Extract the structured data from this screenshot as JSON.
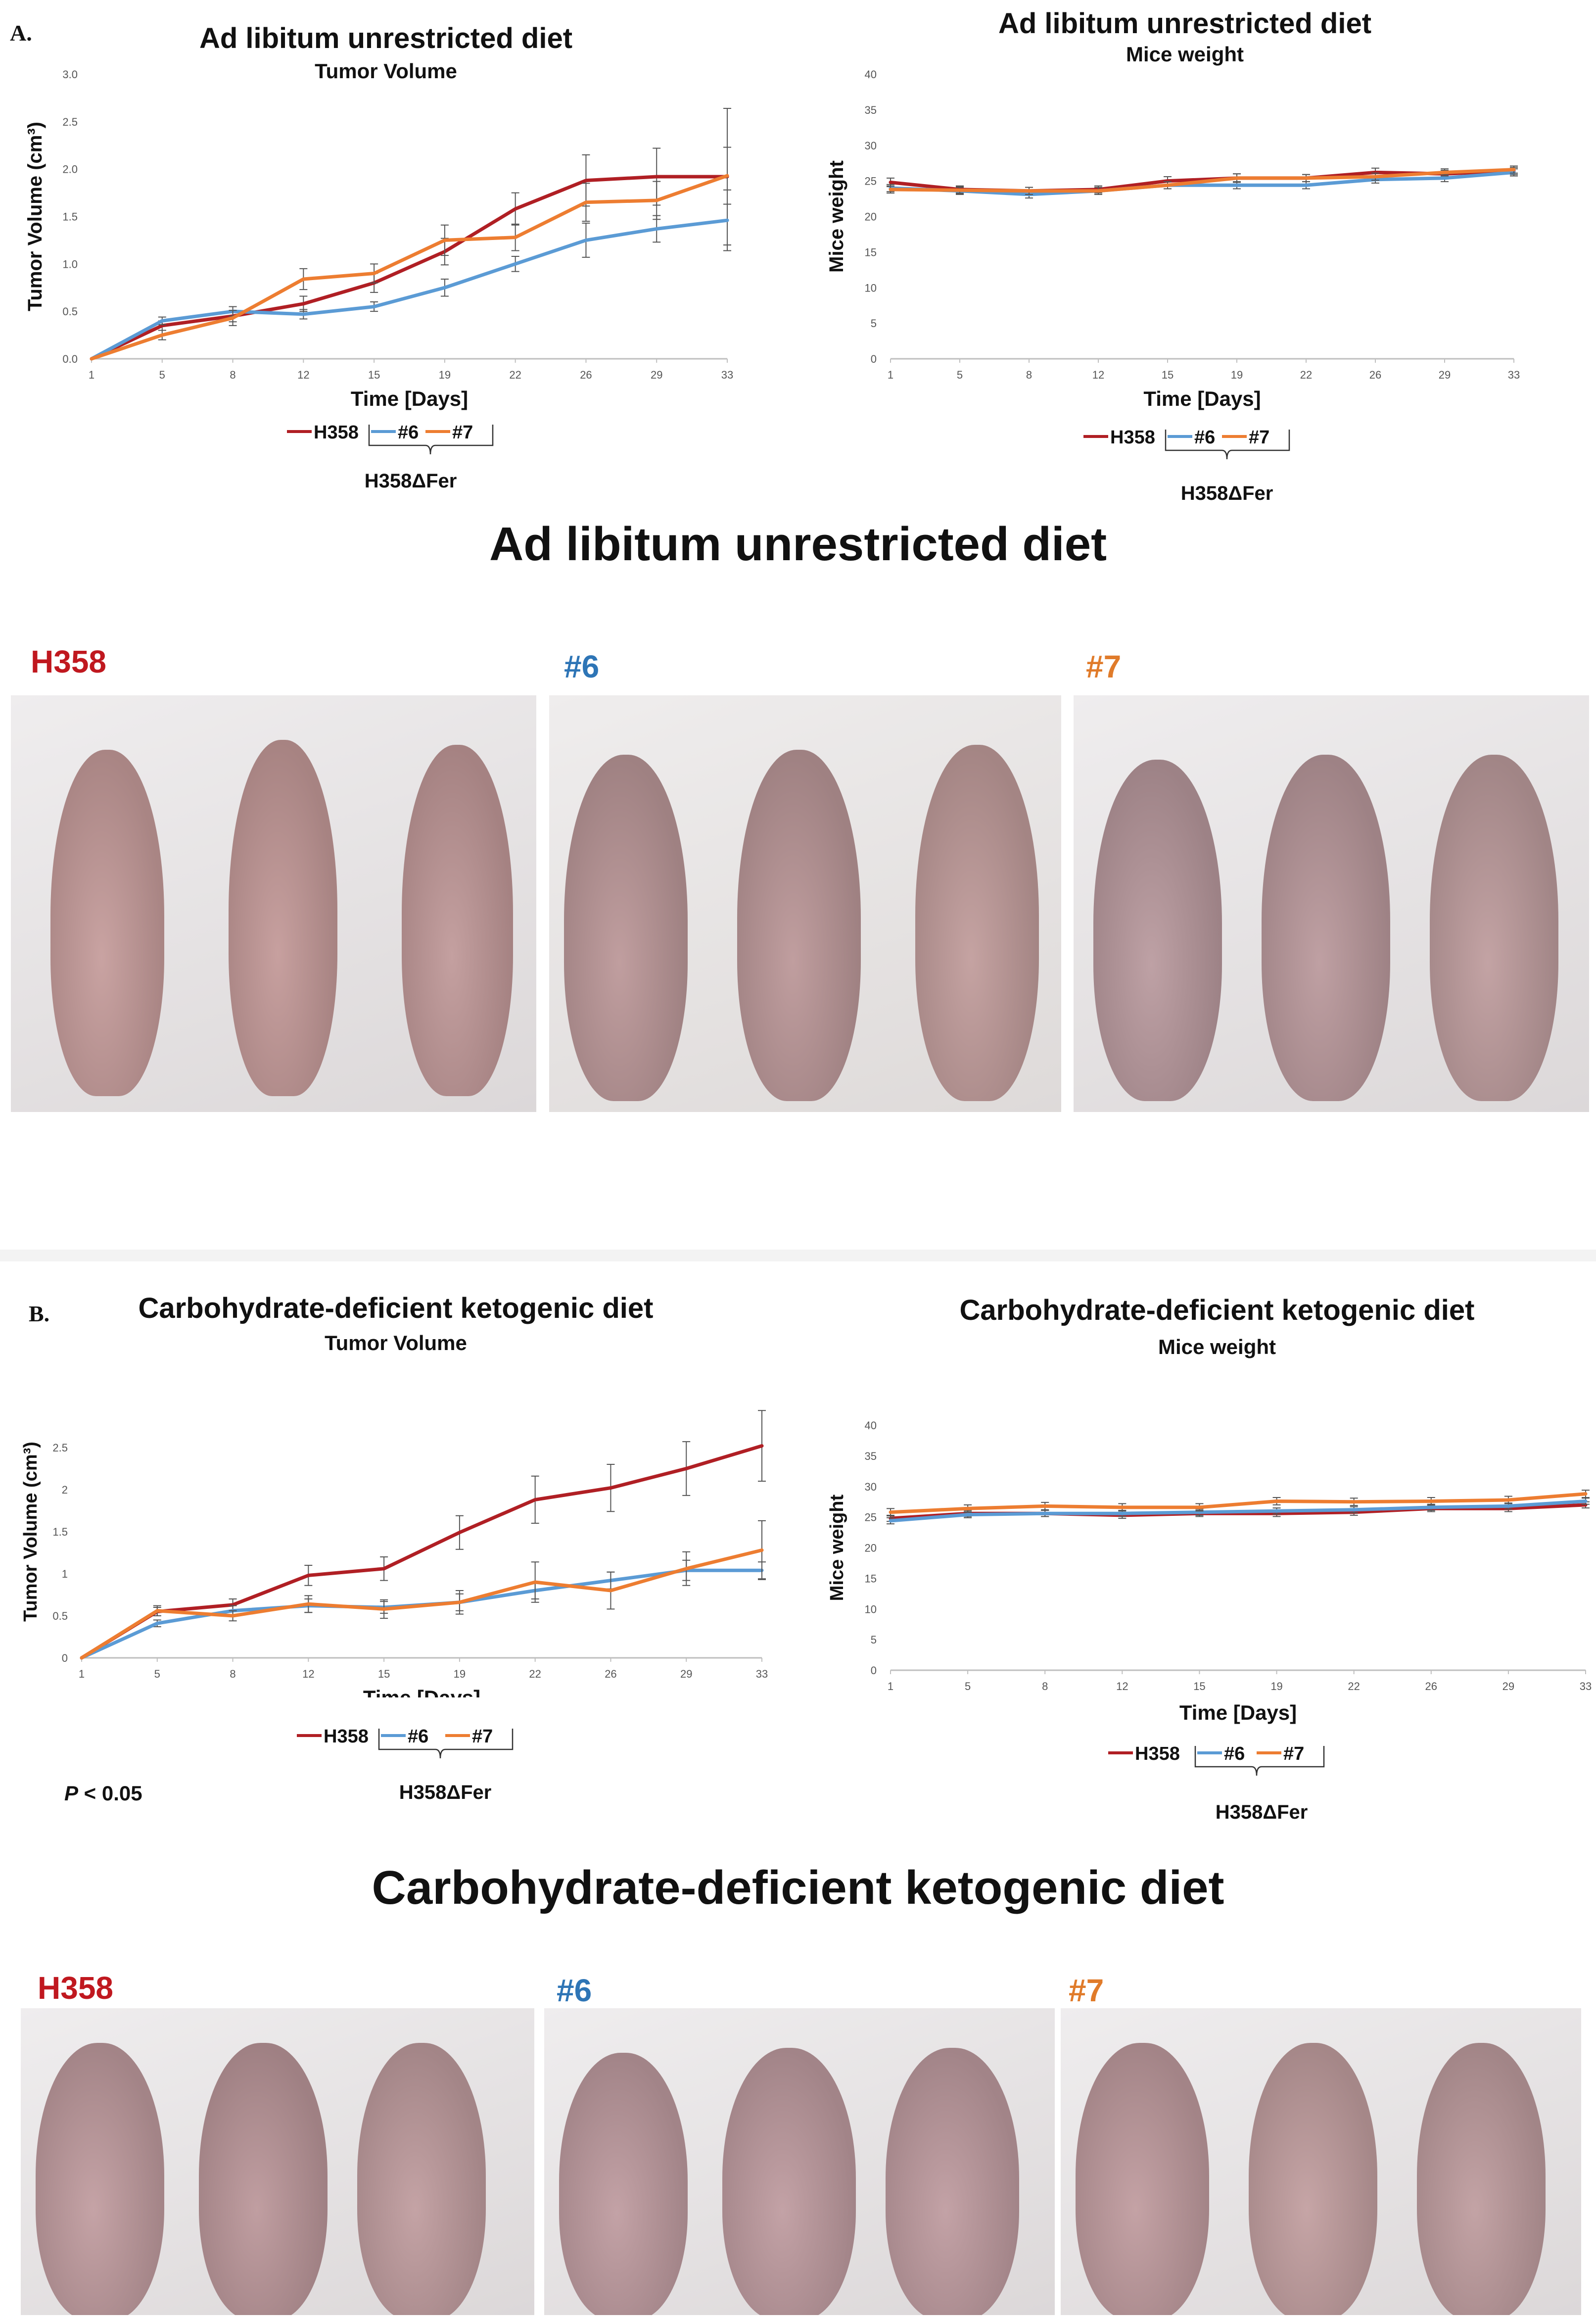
{
  "panels": {
    "a": {
      "label": "A.",
      "section_title": "Ad libitum unrestricted diet",
      "groups": [
        "H358",
        "#6",
        "#7"
      ],
      "tumor": {
        "title": "Ad libitum unrestricted diet",
        "subtitle": "Tumor Volume",
        "ylabel": "Tumor Volume (cm³)",
        "xlabel": "Time [Days]"
      },
      "weight": {
        "title": "Ad libitum unrestricted diet",
        "subtitle": "Mice weight",
        "ylabel": "Mice weight",
        "xlabel": "Time [Days]"
      },
      "legend": {
        "h358": "H358",
        "s6": "#6",
        "s7": "#7",
        "group": "H358ΔFer"
      }
    },
    "b": {
      "label": "B.",
      "section_title": "Carbohydrate-deficient ketogenic diet",
      "groups": [
        "H358",
        "#6",
        "#7"
      ],
      "pvalue_p": "P",
      "pvalue_rest": " < 0.05",
      "tumor": {
        "title": "Carbohydrate-deficient ketogenic diet",
        "subtitle": "Tumor Volume",
        "ylabel": "Tumor Volume (cm³)",
        "xlabel": "Time [Days]"
      },
      "weight": {
        "title": "Carbohydrate-deficient ketogenic diet",
        "subtitle": "Mice weight",
        "ylabel": "Mice weight",
        "xlabel": "Time [Days]"
      },
      "legend": {
        "h358": "H358",
        "s6": "#6",
        "s7": "#7",
        "group": "H358ΔFer"
      }
    }
  },
  "colors": {
    "h358": "#b01f24",
    "s6": "#5b9bd5",
    "s7": "#ed7d31",
    "group_h358": "#c0181f",
    "group_s6": "#2e75b6",
    "group_s7": "#e07b2a"
  },
  "chart_data": [
    {
      "id": "a-tumor",
      "type": "line",
      "title": "Ad libitum unrestricted diet",
      "subtitle": "Tumor Volume",
      "xlabel": "Time [Days]",
      "ylabel": "Tumor Volume (cm³)",
      "categories": [
        "1",
        "5",
        "8",
        "12",
        "15",
        "19",
        "22",
        "26",
        "29",
        "33"
      ],
      "ylim": [
        0,
        3.0
      ],
      "yticks": [
        0.0,
        0.5,
        1.0,
        1.5,
        2.0,
        2.5,
        3.0
      ],
      "ytick_labels": [
        "0.0",
        "0.5",
        "1.0",
        "1.5",
        "2.0",
        "2.5",
        "3.0"
      ],
      "series": [
        {
          "name": "H358",
          "color": "#b01f24",
          "values": [
            0,
            0.35,
            0.45,
            0.58,
            0.8,
            1.13,
            1.58,
            1.88,
            1.92,
            1.92
          ],
          "errors": [
            0,
            0.05,
            0.06,
            0.08,
            0.1,
            0.14,
            0.17,
            0.27,
            0.3,
            0.72
          ]
        },
        {
          "name": "#6",
          "color": "#5b9bd5",
          "values": [
            0,
            0.4,
            0.5,
            0.47,
            0.55,
            0.75,
            1.0,
            1.25,
            1.37,
            1.46
          ],
          "errors": [
            0,
            0.04,
            0.05,
            0.05,
            0.05,
            0.09,
            0.08,
            0.18,
            0.14,
            0.32
          ]
        },
        {
          "name": "#7",
          "color": "#ed7d31",
          "values": [
            0,
            0.25,
            0.43,
            0.84,
            0.9,
            1.25,
            1.28,
            1.65,
            1.67,
            1.93
          ],
          "errors": [
            0,
            0.05,
            0.08,
            0.11,
            0.1,
            0.16,
            0.14,
            0.2,
            0.2,
            0.3
          ]
        }
      ]
    },
    {
      "id": "a-weight",
      "type": "line",
      "title": "Ad libitum unrestricted diet",
      "subtitle": "Mice weight",
      "xlabel": "Time [Days]",
      "ylabel": "Mice weight",
      "categories": [
        "1",
        "5",
        "8",
        "12",
        "15",
        "19",
        "22",
        "26",
        "29",
        "33"
      ],
      "ylim": [
        0,
        40
      ],
      "yticks": [
        0,
        5,
        10,
        15,
        20,
        25,
        30,
        35,
        40
      ],
      "ytick_labels": [
        "0",
        "5",
        "10",
        "15",
        "20",
        "25",
        "30",
        "35",
        "40"
      ],
      "series": [
        {
          "name": "H358",
          "color": "#b01f24",
          "values": [
            24.8,
            23.8,
            23.6,
            23.8,
            25.0,
            25.4,
            25.4,
            26.2,
            26.0,
            26.4
          ],
          "errors": [
            0.6,
            0.5,
            0.5,
            0.5,
            0.6,
            0.6,
            0.5,
            0.6,
            0.5,
            0.5
          ]
        },
        {
          "name": "#6",
          "color": "#5b9bd5",
          "values": [
            24.0,
            23.6,
            23.1,
            23.6,
            24.4,
            24.4,
            24.4,
            25.2,
            25.4,
            26.2
          ],
          "errors": [
            0.5,
            0.5,
            0.5,
            0.5,
            0.5,
            0.5,
            0.5,
            0.5,
            0.5,
            0.5
          ]
        },
        {
          "name": "#7",
          "color": "#ed7d31",
          "values": [
            23.8,
            23.7,
            23.6,
            23.6,
            24.4,
            25.4,
            25.4,
            25.6,
            26.2,
            26.6
          ],
          "errors": [
            0.5,
            0.5,
            0.5,
            0.5,
            0.5,
            0.6,
            0.5,
            0.5,
            0.5,
            0.5
          ]
        }
      ]
    },
    {
      "id": "b-tumor",
      "type": "line",
      "title": "Carbohydrate-deficient ketogenic diet",
      "subtitle": "Tumor Volume",
      "xlabel": "Time [Days]",
      "ylabel": "Tumor Volume (cm³)",
      "categories": [
        "1",
        "5",
        "8",
        "12",
        "15",
        "19",
        "22",
        "26",
        "29",
        "33"
      ],
      "ylim": [
        0,
        3.0
      ],
      "yticks": [
        0,
        0.5,
        1,
        1.5,
        2,
        2.5
      ],
      "ytick_labels": [
        "0",
        "0.5",
        "1",
        "1.5",
        "2",
        "2.5"
      ],
      "series": [
        {
          "name": "H358",
          "color": "#b01f24",
          "values": [
            0,
            0.55,
            0.63,
            0.98,
            1.06,
            1.49,
            1.88,
            2.02,
            2.25,
            2.52
          ],
          "errors": [
            0,
            0.05,
            0.07,
            0.12,
            0.14,
            0.2,
            0.28,
            0.28,
            0.32,
            0.42
          ]
        },
        {
          "name": "#6",
          "color": "#5b9bd5",
          "values": [
            0,
            0.41,
            0.56,
            0.62,
            0.6,
            0.66,
            0.8,
            0.92,
            1.04,
            1.04
          ],
          "errors": [
            0,
            0.04,
            0.06,
            0.08,
            0.07,
            0.1,
            0.1,
            0.1,
            0.12,
            0.1
          ]
        },
        {
          "name": "#7",
          "color": "#ed7d31",
          "values": [
            0,
            0.56,
            0.5,
            0.64,
            0.58,
            0.66,
            0.9,
            0.8,
            1.06,
            1.28
          ],
          "errors": [
            0,
            0.06,
            0.06,
            0.1,
            0.11,
            0.14,
            0.24,
            0.22,
            0.2,
            0.35
          ]
        }
      ]
    },
    {
      "id": "b-weight",
      "type": "line",
      "title": "Carbohydrate-deficient ketogenic diet",
      "subtitle": "Mice weight",
      "xlabel": "Time [Days]",
      "ylabel": "Mice weight",
      "categories": [
        "1",
        "5",
        "8",
        "12",
        "15",
        "19",
        "22",
        "26",
        "29",
        "33"
      ],
      "ylim": [
        0,
        40
      ],
      "yticks": [
        0,
        5,
        10,
        15,
        20,
        25,
        30,
        35,
        40
      ],
      "ytick_labels": [
        "0",
        "5",
        "10",
        "15",
        "20",
        "25",
        "30",
        "35",
        "40"
      ],
      "series": [
        {
          "name": "H358",
          "color": "#b01f24",
          "values": [
            24.8,
            25.6,
            25.6,
            25.3,
            25.6,
            25.6,
            25.8,
            26.4,
            26.4,
            27.0
          ],
          "errors": [
            0.5,
            0.5,
            0.5,
            0.5,
            0.5,
            0.5,
            0.5,
            0.5,
            0.5,
            0.5
          ]
        },
        {
          "name": "#6",
          "color": "#5b9bd5",
          "values": [
            24.4,
            25.4,
            25.6,
            25.6,
            25.8,
            26.0,
            26.2,
            26.6,
            26.8,
            27.6
          ],
          "errors": [
            0.5,
            0.5,
            0.5,
            0.5,
            0.5,
            0.5,
            0.5,
            0.5,
            0.5,
            0.5
          ]
        },
        {
          "name": "#7",
          "color": "#ed7d31",
          "values": [
            25.8,
            26.4,
            26.8,
            26.6,
            26.6,
            27.6,
            27.5,
            27.6,
            27.8,
            28.8
          ],
          "errors": [
            0.6,
            0.6,
            0.6,
            0.6,
            0.6,
            0.6,
            0.6,
            0.6,
            0.6,
            0.6
          ]
        }
      ]
    }
  ]
}
